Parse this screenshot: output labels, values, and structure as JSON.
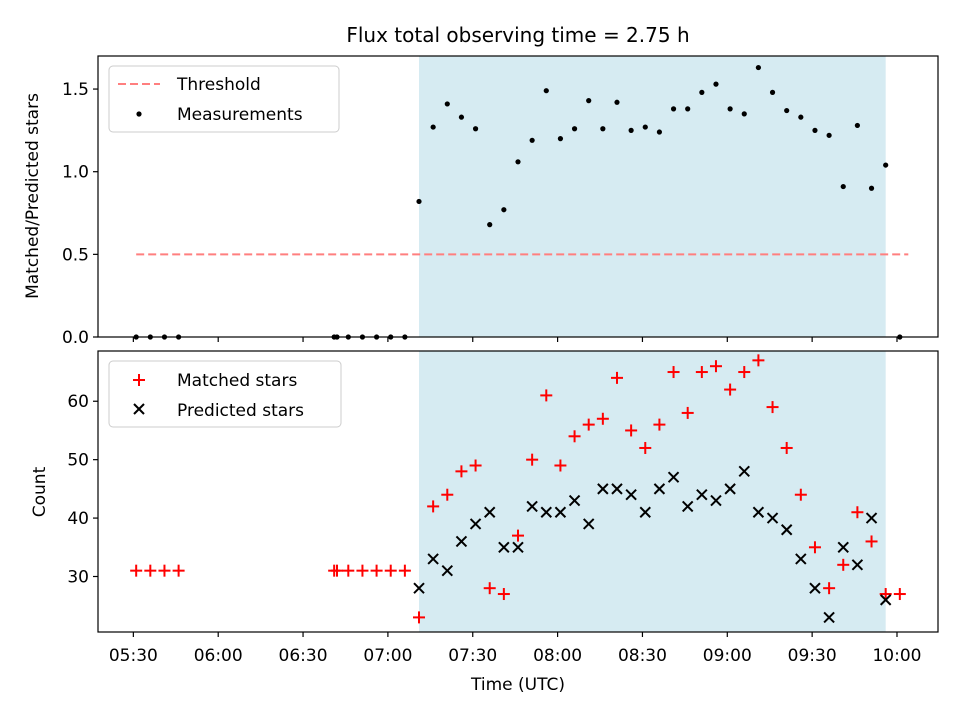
{
  "chart_data": {
    "title": "Flux total observing time = 2.75 h",
    "xlabel": "Time (UTC)",
    "x_ticks": [
      {
        "t": 330,
        "label": "05:30"
      },
      {
        "t": 360,
        "label": "06:00"
      },
      {
        "t": 390,
        "label": "06:30"
      },
      {
        "t": 420,
        "label": "07:00"
      },
      {
        "t": 450,
        "label": "07:30"
      },
      {
        "t": 480,
        "label": "08:00"
      },
      {
        "t": 510,
        "label": "08:30"
      },
      {
        "t": 540,
        "label": "09:00"
      },
      {
        "t": 570,
        "label": "09:30"
      },
      {
        "t": 600,
        "label": "10:00"
      }
    ],
    "x_range": [
      317.5,
      614.5
    ],
    "observing_window": {
      "start": "07:11",
      "end": "09:56",
      "color": "#add8e6"
    },
    "charts": [
      {
        "type": "scatter",
        "ylabel": "Matched/Predicted stars",
        "ylim": [
          0,
          1.7
        ],
        "y_ticks": [
          "0.0",
          "0.5",
          "1.0",
          "1.5"
        ],
        "y_tick_values": [
          0,
          0.5,
          1.0,
          1.5
        ],
        "legend": [
          "Threshold",
          "Measurements"
        ],
        "legend_position": "top-left",
        "threshold": {
          "name": "Threshold",
          "value": 0.5,
          "x_from": 331,
          "x_to": 604,
          "color": "#ff7f7f"
        },
        "series": [
          {
            "name": "Measurements",
            "marker": "dot",
            "color": "#000000",
            "points": [
              [
                331,
                0
              ],
              [
                336,
                0
              ],
              [
                341,
                0
              ],
              [
                346,
                0
              ],
              [
                401,
                0
              ],
              [
                402,
                0
              ],
              [
                406,
                0
              ],
              [
                411,
                0
              ],
              [
                416,
                0
              ],
              [
                421,
                0
              ],
              [
                426,
                0
              ],
              [
                431,
                0.82
              ],
              [
                436,
                1.27
              ],
              [
                441,
                1.41
              ],
              [
                446,
                1.33
              ],
              [
                451,
                1.26
              ],
              [
                456,
                0.68
              ],
              [
                461,
                0.77
              ],
              [
                466,
                1.06
              ],
              [
                471,
                1.19
              ],
              [
                476,
                1.49
              ],
              [
                481,
                1.2
              ],
              [
                486,
                1.26
              ],
              [
                491,
                1.43
              ],
              [
                496,
                1.26
              ],
              [
                501,
                1.42
              ],
              [
                506,
                1.25
              ],
              [
                511,
                1.27
              ],
              [
                516,
                1.24
              ],
              [
                521,
                1.38
              ],
              [
                526,
                1.38
              ],
              [
                531,
                1.48
              ],
              [
                536,
                1.53
              ],
              [
                541,
                1.38
              ],
              [
                546,
                1.35
              ],
              [
                551,
                1.63
              ],
              [
                556,
                1.48
              ],
              [
                561,
                1.37
              ],
              [
                566,
                1.33
              ],
              [
                571,
                1.25
              ],
              [
                576,
                1.22
              ],
              [
                581,
                0.91
              ],
              [
                586,
                1.28
              ],
              [
                591,
                0.9
              ],
              [
                596,
                1.04
              ],
              [
                601,
                0
              ]
            ]
          }
        ]
      },
      {
        "type": "scatter",
        "ylabel": "Count",
        "ylim": [
          20.5,
          68.6
        ],
        "y_ticks": [
          "30",
          "40",
          "50",
          "60"
        ],
        "y_tick_values": [
          30,
          40,
          50,
          60
        ],
        "legend": [
          "Matched stars",
          "Predicted stars"
        ],
        "legend_position": "top-left",
        "series": [
          {
            "name": "Matched stars",
            "marker": "plus",
            "color": "#ff0000",
            "points": [
              [
                331,
                31
              ],
              [
                336,
                31
              ],
              [
                341,
                31
              ],
              [
                346,
                31
              ],
              [
                401,
                31
              ],
              [
                402,
                31
              ],
              [
                406,
                31
              ],
              [
                411,
                31
              ],
              [
                416,
                31
              ],
              [
                421,
                31
              ],
              [
                426,
                31
              ],
              [
                431,
                23
              ],
              [
                436,
                42
              ],
              [
                441,
                44
              ],
              [
                446,
                48
              ],
              [
                451,
                49
              ],
              [
                456,
                28
              ],
              [
                461,
                27
              ],
              [
                466,
                37
              ],
              [
                471,
                50
              ],
              [
                476,
                61
              ],
              [
                481,
                49
              ],
              [
                486,
                54
              ],
              [
                491,
                56
              ],
              [
                496,
                57
              ],
              [
                501,
                64
              ],
              [
                506,
                55
              ],
              [
                511,
                52
              ],
              [
                516,
                56
              ],
              [
                521,
                65
              ],
              [
                526,
                58
              ],
              [
                531,
                65
              ],
              [
                536,
                66
              ],
              [
                541,
                62
              ],
              [
                546,
                65
              ],
              [
                551,
                67
              ],
              [
                556,
                59
              ],
              [
                561,
                52
              ],
              [
                566,
                44
              ],
              [
                571,
                35
              ],
              [
                576,
                28
              ],
              [
                581,
                32
              ],
              [
                586,
                41
              ],
              [
                591,
                36
              ],
              [
                596,
                27
              ],
              [
                601,
                27
              ]
            ]
          },
          {
            "name": "Predicted stars",
            "marker": "x",
            "color": "#000000",
            "points": [
              [
                431,
                28
              ],
              [
                436,
                33
              ],
              [
                441,
                31
              ],
              [
                446,
                36
              ],
              [
                451,
                39
              ],
              [
                456,
                41
              ],
              [
                461,
                35
              ],
              [
                466,
                35
              ],
              [
                471,
                42
              ],
              [
                476,
                41
              ],
              [
                481,
                41
              ],
              [
                486,
                43
              ],
              [
                491,
                39
              ],
              [
                496,
                45
              ],
              [
                501,
                45
              ],
              [
                506,
                44
              ],
              [
                511,
                41
              ],
              [
                516,
                45
              ],
              [
                521,
                47
              ],
              [
                526,
                42
              ],
              [
                531,
                44
              ],
              [
                536,
                43
              ],
              [
                541,
                45
              ],
              [
                546,
                48
              ],
              [
                551,
                41
              ],
              [
                556,
                40
              ],
              [
                561,
                38
              ],
              [
                566,
                33
              ],
              [
                571,
                28
              ],
              [
                576,
                23
              ],
              [
                581,
                35
              ],
              [
                586,
                32
              ],
              [
                591,
                40
              ],
              [
                596,
                26
              ]
            ]
          }
        ]
      }
    ]
  }
}
